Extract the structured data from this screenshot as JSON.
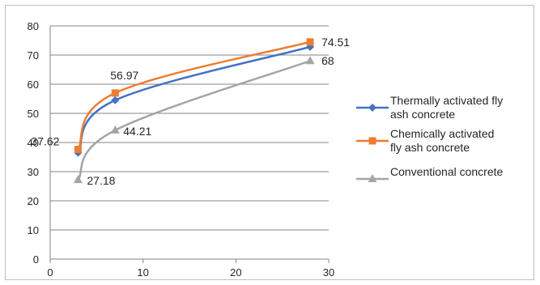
{
  "chart_data": {
    "type": "line",
    "title": "",
    "xlabel": "",
    "ylabel": "",
    "xlim": [
      0,
      30
    ],
    "ylim": [
      0,
      80
    ],
    "x_ticks": [
      0,
      10,
      20,
      30
    ],
    "y_ticks": [
      0,
      10,
      20,
      30,
      40,
      50,
      60,
      70,
      80
    ],
    "grid": "horizontal",
    "legend_position": "right",
    "series": [
      {
        "name": "Thermally activated fly ash concrete",
        "legend_lines": [
          "Thermally activated fly",
          "ash concrete"
        ],
        "color": "#4472c4",
        "marker": "diamond",
        "x": [
          3,
          7,
          28
        ],
        "y": [
          36.5,
          54.5,
          72.8
        ],
        "labels": [
          "",
          "",
          ""
        ]
      },
      {
        "name": "Chemically activated fly ash concrete",
        "legend_lines": [
          "Chemically activated",
          "fly ash concrete"
        ],
        "color": "#ed7d31",
        "marker": "square",
        "x": [
          3,
          7,
          28
        ],
        "y": [
          37.62,
          56.97,
          74.51
        ],
        "labels": [
          "37.62",
          "56.97",
          "74.51"
        ]
      },
      {
        "name": "Conventional concrete",
        "legend_lines": [
          "Conventional concrete"
        ],
        "color": "#a5a5a5",
        "marker": "triangle",
        "x": [
          3,
          7,
          28
        ],
        "y": [
          27.18,
          44.21,
          68
        ],
        "labels": [
          "27.18",
          "44.21",
          "68"
        ]
      }
    ]
  }
}
